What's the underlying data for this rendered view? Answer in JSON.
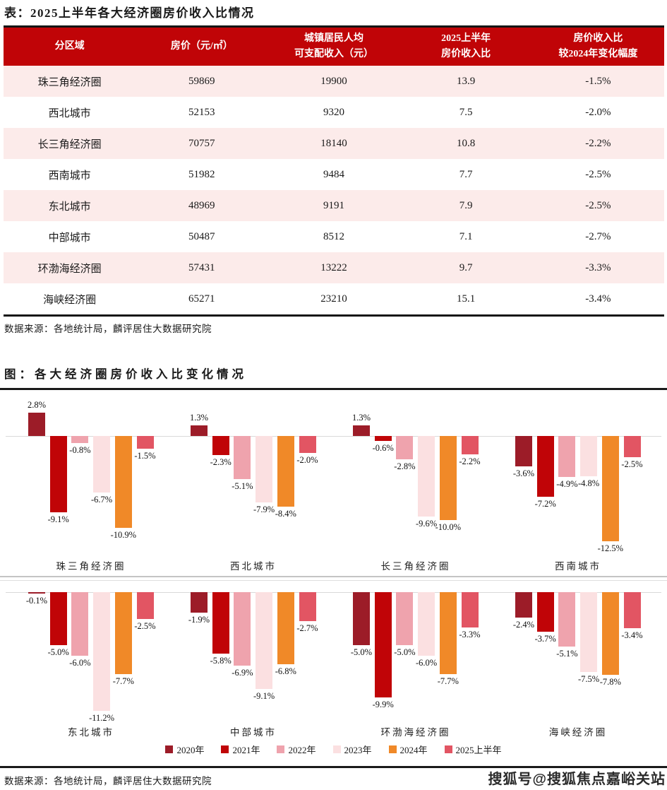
{
  "page": {
    "accent_red": "#c00407",
    "row_pink": "#fcebea"
  },
  "table": {
    "title": "表：2025上半年各大经济圈房价收入比情况",
    "columns": [
      "分区域",
      "房价（元/㎡）",
      "城镇居民人均\n可支配收入（元）",
      "2025上半年\n房价收入比",
      "房价收入比\n较2024年变化幅度"
    ],
    "rows": [
      [
        "珠三角经济圈",
        "59869",
        "19900",
        "13.9",
        "-1.5%"
      ],
      [
        "西北城市",
        "52153",
        "9320",
        "7.5",
        "-2.0%"
      ],
      [
        "长三角经济圈",
        "70757",
        "18140",
        "10.8",
        "-2.2%"
      ],
      [
        "西南城市",
        "51982",
        "9484",
        "7.7",
        "-2.5%"
      ],
      [
        "东北城市",
        "48969",
        "9191",
        "7.9",
        "-2.5%"
      ],
      [
        "中部城市",
        "50487",
        "8512",
        "7.1",
        "-2.7%"
      ],
      [
        "环渤海经济圈",
        "57431",
        "13222",
        "9.7",
        "-3.3%"
      ],
      [
        "海峡经济圈",
        "65271",
        "23210",
        "15.1",
        "-3.4%"
      ]
    ],
    "source": "数据来源：各地统计局，麟评居住大数据研究院"
  },
  "chart_data": {
    "type": "bar",
    "title": "图：各大经济圈房价收入比变化情况",
    "unit": "%",
    "legend_position": "bottom",
    "value_labels": "all bars, one decimal, percent",
    "categories": [
      "2020年",
      "2021年",
      "2022年",
      "2023年",
      "2024年",
      "2025上半年"
    ],
    "series_colors": [
      "#9c1c28",
      "#c00407",
      "#efa3ad",
      "#fbe0e1",
      "#f08928",
      "#e25563"
    ],
    "groups": [
      {
        "name": "珠三角经济圈",
        "values": [
          2.8,
          -9.1,
          -0.8,
          -6.7,
          -10.9,
          -1.5
        ]
      },
      {
        "name": "西北城市",
        "values": [
          1.3,
          -2.3,
          -5.1,
          -7.9,
          -8.4,
          -2.0
        ]
      },
      {
        "name": "长三角经济圈",
        "values": [
          1.3,
          -0.6,
          -2.8,
          -9.6,
          -10.0,
          -2.2
        ]
      },
      {
        "name": "西南城市",
        "values": [
          -3.6,
          -7.2,
          -4.9,
          -4.8,
          -12.5,
          -2.5
        ]
      },
      {
        "name": "东北城市",
        "values": [
          -0.1,
          -5.0,
          -6.0,
          -11.2,
          -7.7,
          -2.5
        ]
      },
      {
        "name": "中部城市",
        "values": [
          -1.9,
          -5.8,
          -6.9,
          -9.1,
          -6.8,
          -2.7
        ]
      },
      {
        "name": "环渤海经济圈",
        "values": [
          -5.0,
          -9.9,
          -5.0,
          -6.0,
          -7.7,
          -3.3
        ]
      },
      {
        "name": "海峡经济圈",
        "values": [
          -2.4,
          -3.7,
          -5.1,
          -7.5,
          -7.8,
          -3.4
        ]
      }
    ]
  },
  "footer": {
    "source": "数据来源：各地统计局，麟评居住大数据研究院",
    "watermark": "搜狐号@搜狐焦点嘉峪关站"
  }
}
